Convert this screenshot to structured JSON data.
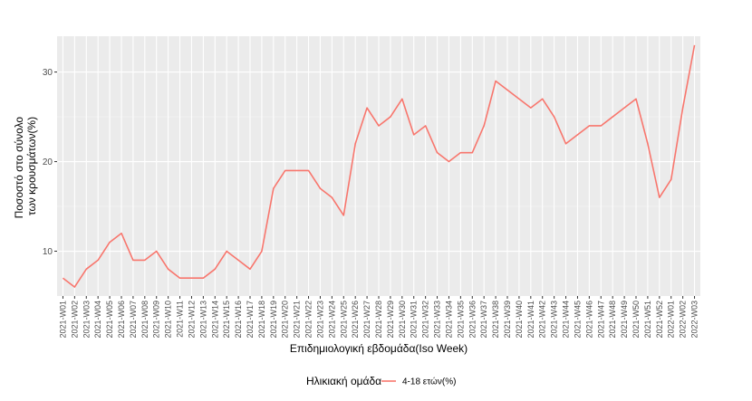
{
  "chart_data": {
    "type": "line",
    "title": "",
    "xlabel": "Επιδημιολογική εβδομάδα(Iso Week)",
    "ylabel_lines": [
      "Ποσοστό στο σύνολο",
      "των κρουσμάτων(%)"
    ],
    "ylim": [
      5,
      34
    ],
    "yticks": [
      10,
      20,
      30
    ],
    "grid": true,
    "legend": {
      "position": "bottom",
      "title": "Ηλικιακή ομάδα"
    },
    "categories": [
      "2021-W01",
      "2021-W02",
      "2021-W03",
      "2021-W04",
      "2021-W05",
      "2021-W06",
      "2021-W07",
      "2021-W08",
      "2021-W09",
      "2021-W10",
      "2021-W11",
      "2021-W12",
      "2021-W13",
      "2021-W14",
      "2021-W15",
      "2021-W16",
      "2021-W17",
      "2021-W18",
      "2021-W19",
      "2021-W20",
      "2021-W21",
      "2021-W22",
      "2021-W23",
      "2021-W24",
      "2021-W25",
      "2021-W26",
      "2021-W27",
      "2021-W28",
      "2021-W29",
      "2021-W30",
      "2021-W31",
      "2021-W32",
      "2021-W33",
      "2021-W34",
      "2021-W35",
      "2021-W36",
      "2021-W37",
      "2021-W38",
      "2021-W39",
      "2021-W40",
      "2021-W41",
      "2021-W42",
      "2021-W43",
      "2021-W44",
      "2021-W45",
      "2021-W46",
      "2021-W47",
      "2021-W48",
      "2021-W49",
      "2021-W50",
      "2021-W51",
      "2021-W52",
      "2022-W01",
      "2022-W02",
      "2022-W03"
    ],
    "series": [
      {
        "name": "4-18 ετών(%)",
        "color": "#f8766d",
        "values": [
          7,
          6,
          8,
          9,
          11,
          12,
          9,
          9,
          10,
          8,
          7,
          7,
          7,
          8,
          10,
          9,
          8,
          10,
          17,
          19,
          19,
          19,
          17,
          16,
          14,
          22,
          26,
          24,
          25,
          27,
          23,
          24,
          21,
          20,
          21,
          21,
          24,
          29,
          28,
          27,
          26,
          27,
          25,
          22,
          23,
          24,
          24,
          25,
          26,
          27,
          22,
          16,
          18,
          26,
          33
        ]
      }
    ]
  }
}
